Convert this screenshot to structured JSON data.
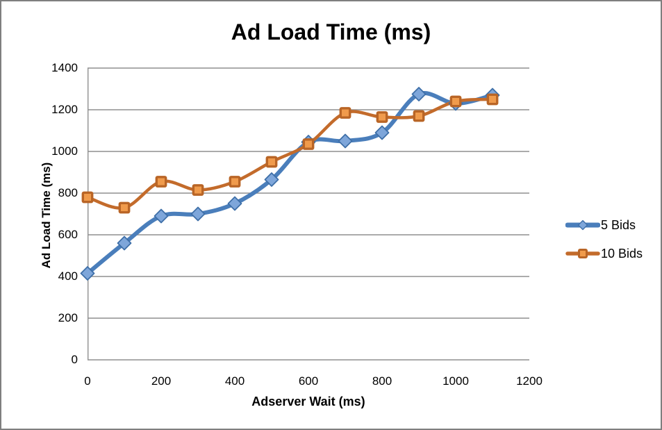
{
  "frame": {
    "background": "#FFFFFF",
    "border_color": "#7F7F7F"
  },
  "chart_data": {
    "type": "line",
    "title": "Ad Load Time (ms)",
    "xlabel": "Adserver Wait (ms)",
    "ylabel": "Ad Load Time (ms)",
    "x": [
      0,
      100,
      200,
      300,
      400,
      500,
      600,
      700,
      800,
      900,
      1000,
      1100
    ],
    "series": [
      {
        "name": "5 Bids",
        "marker": "diamond",
        "color": "#4A7EBB",
        "marker_fill": "#7EA6DA",
        "marker_stroke": "#3E6FA8",
        "line_width": 6,
        "values": [
          415,
          560,
          690,
          700,
          750,
          865,
          1045,
          1050,
          1090,
          1275,
          1230,
          1270
        ]
      },
      {
        "name": "10 Bids",
        "marker": "square",
        "color": "#C36B2B",
        "marker_fill": "#F09B4C",
        "marker_stroke": "#B96526",
        "line_width": 4.5,
        "values": [
          780,
          730,
          855,
          815,
          855,
          950,
          1035,
          1185,
          1165,
          1170,
          1240,
          1250
        ]
      }
    ],
    "xlim": [
      0,
      1200
    ],
    "ylim": [
      0,
      1400
    ],
    "x_ticks": [
      0,
      200,
      400,
      600,
      800,
      1000,
      1200
    ],
    "y_ticks": [
      0,
      200,
      400,
      600,
      800,
      1000,
      1200,
      1400
    ],
    "grid": true,
    "smooth": true,
    "legend_position": "right",
    "gridline_color": "#8F8F8F",
    "axis_line_color": "#8F8F8F"
  }
}
